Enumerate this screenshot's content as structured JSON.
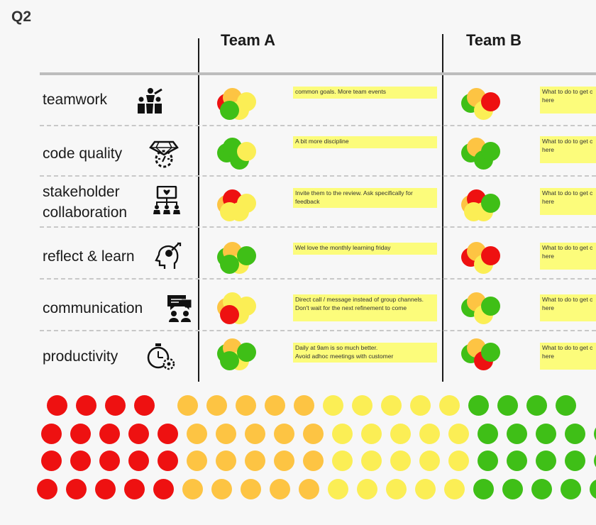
{
  "board": {
    "quarter": "Q2"
  },
  "teams": [
    "Team A",
    "Team B"
  ],
  "categories": [
    {
      "label": "teamwork",
      "icon": "teamwork-icon"
    },
    {
      "label": "code quality",
      "icon": "code-quality-icon"
    },
    {
      "label": "stakeholder collaboration",
      "icon": "stakeholder-icon"
    },
    {
      "label": "reflect & learn",
      "icon": "reflect-learn-icon"
    },
    {
      "label": "communication",
      "icon": "communication-icon"
    },
    {
      "label": "productivity",
      "icon": "productivity-icon"
    }
  ],
  "notes": {
    "team_a": [
      "common goals. More team events",
      "A bit more discipline",
      "Invite them to the review. Ask specifically for feedback",
      "Wel love the monthly learning friday",
      "Direct call / message instead of group channels. Don't wait for the next refinement to come",
      "Daily at 9am is so much better.\nAvoid adhoc meetings with customer"
    ],
    "team_b": [
      "What to do to get c here",
      "What to do to get c here",
      "What to do to get c here",
      "What to do to get c here",
      "What to do to get c here",
      "What to do to get c here"
    ]
  },
  "colors": {
    "red": "#ee1111",
    "orange": "#fdc443",
    "yellow": "#fbee55",
    "green": "#3fbf17"
  },
  "votes": {
    "team_a": [
      [
        "red",
        "orange",
        "yellow",
        "yellow",
        "green"
      ],
      [
        "green",
        "green",
        "green",
        "yellow"
      ],
      [
        "orange",
        "red",
        "yellow",
        "yellow",
        "yellow"
      ],
      [
        "green",
        "orange",
        "yellow",
        "green",
        "green"
      ],
      [
        "orange",
        "yellow",
        "yellow",
        "yellow",
        "red"
      ],
      [
        "green",
        "orange",
        "yellow",
        "green",
        "green"
      ]
    ],
    "team_b": [
      [
        "green",
        "orange",
        "yellow",
        "red"
      ],
      [
        "green",
        "orange",
        "green",
        "green"
      ],
      [
        "orange",
        "red",
        "yellow",
        "green",
        "yellow"
      ],
      [
        "red",
        "orange",
        "yellow",
        "red"
      ],
      [
        "green",
        "orange",
        "yellow",
        "green"
      ],
      [
        "green",
        "orange",
        "red",
        "green"
      ]
    ]
  },
  "token_pool": {
    "rows": [
      [
        "red",
        "red",
        "red",
        "red",
        "orange",
        "orange",
        "orange",
        "orange",
        "orange",
        "yellow",
        "yellow",
        "yellow",
        "yellow",
        "yellow",
        "green",
        "green",
        "green",
        "green"
      ],
      [
        "red",
        "red",
        "red",
        "red",
        "red",
        "orange",
        "orange",
        "orange",
        "orange",
        "orange",
        "yellow",
        "yellow",
        "yellow",
        "yellow",
        "yellow",
        "green",
        "green",
        "green",
        "green",
        "green"
      ],
      [
        "red",
        "red",
        "red",
        "red",
        "red",
        "orange",
        "orange",
        "orange",
        "orange",
        "orange",
        "yellow",
        "yellow",
        "yellow",
        "yellow",
        "yellow",
        "green",
        "green",
        "green",
        "green",
        "green"
      ],
      [
        "red",
        "red",
        "red",
        "red",
        "red",
        "orange",
        "orange",
        "orange",
        "orange",
        "orange",
        "yellow",
        "yellow",
        "yellow",
        "yellow",
        "yellow",
        "green",
        "green",
        "green",
        "green",
        "green"
      ]
    ]
  }
}
